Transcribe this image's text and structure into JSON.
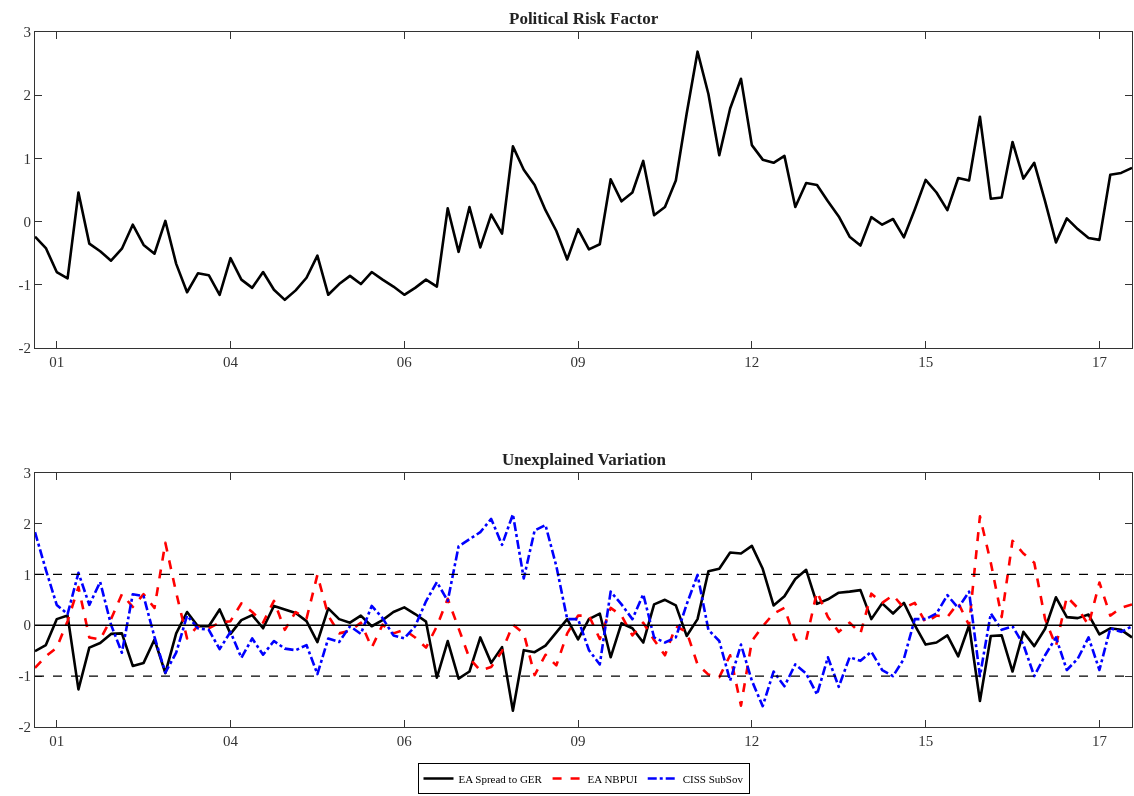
{
  "chart_data": [
    {
      "type": "line",
      "title": "Political Risk Factor",
      "ylim": [
        -2,
        3
      ],
      "yticks": [
        -2,
        -1,
        0,
        1,
        2,
        3
      ],
      "grid": false,
      "legend": false,
      "categories": [
        null,
        null,
        "01",
        null,
        null,
        null,
        null,
        null,
        null,
        null,
        null,
        null,
        null,
        null,
        null,
        null,
        null,
        null,
        "04",
        null,
        null,
        null,
        null,
        null,
        null,
        null,
        null,
        null,
        null,
        null,
        null,
        null,
        null,
        null,
        "06",
        null,
        null,
        null,
        null,
        null,
        null,
        null,
        null,
        null,
        null,
        null,
        null,
        null,
        null,
        null,
        "09",
        null,
        null,
        null,
        null,
        null,
        null,
        null,
        null,
        null,
        null,
        null,
        null,
        null,
        null,
        null,
        "12",
        null,
        null,
        null,
        null,
        null,
        null,
        null,
        null,
        null,
        null,
        null,
        null,
        null,
        null,
        null,
        "15",
        null,
        null,
        null,
        null,
        null,
        null,
        null,
        null,
        null,
        null,
        null,
        null,
        null,
        null,
        null,
        "17",
        null,
        null,
        null
      ],
      "series": [
        {
          "color": "#000000",
          "line_style": "solid",
          "values": [
            -0.24,
            -0.42,
            -0.8,
            -0.9,
            0.46,
            -0.35,
            -0.47,
            -0.62,
            -0.43,
            -0.05,
            -0.37,
            -0.51,
            0.01,
            -0.67,
            -1.12,
            -0.82,
            -0.85,
            -1.16,
            -0.58,
            -0.92,
            -1.05,
            -0.8,
            -1.08,
            -1.24,
            -1.09,
            -0.89,
            -0.54,
            -1.16,
            -0.99,
            -0.86,
            -0.99,
            -0.8,
            -0.92,
            -1.03,
            -1.16,
            -1.05,
            -0.92,
            -1.03,
            0.21,
            -0.48,
            0.23,
            -0.41,
            0.11,
            -0.19,
            1.19,
            0.82,
            0.58,
            0.18,
            -0.15,
            -0.6,
            -0.12,
            -0.44,
            -0.36,
            0.67,
            0.32,
            0.46,
            0.96,
            0.1,
            0.23,
            0.65,
            1.71,
            2.69,
            2.02,
            1.05,
            1.79,
            2.26,
            1.21,
            0.98,
            0.93,
            1.04,
            0.23,
            0.61,
            0.58,
            0.32,
            0.08,
            -0.24,
            -0.38,
            0.07,
            -0.05,
            0.04,
            -0.25,
            0.19,
            0.66,
            0.46,
            0.18,
            0.69,
            0.65,
            1.66,
            0.36,
            0.38,
            1.26,
            0.68,
            0.93,
            0.32,
            -0.33,
            0.05,
            -0.12,
            -0.26,
            -0.29,
            0.74,
            0.77,
            0.85
          ]
        }
      ]
    },
    {
      "type": "line",
      "title": "Unexplained Variation",
      "ylim": [
        -2,
        3
      ],
      "yticks": [
        -2,
        -1,
        0,
        1,
        2,
        3
      ],
      "grid": false,
      "legend": "bottom",
      "categories": [
        null,
        null,
        "01",
        null,
        null,
        null,
        null,
        null,
        null,
        null,
        null,
        null,
        null,
        null,
        null,
        null,
        null,
        null,
        "04",
        null,
        null,
        null,
        null,
        null,
        null,
        null,
        null,
        null,
        null,
        null,
        null,
        null,
        null,
        null,
        "06",
        null,
        null,
        null,
        null,
        null,
        null,
        null,
        null,
        null,
        null,
        null,
        null,
        null,
        null,
        null,
        "09",
        null,
        null,
        null,
        null,
        null,
        null,
        null,
        null,
        null,
        null,
        null,
        null,
        null,
        null,
        null,
        "12",
        null,
        null,
        null,
        null,
        null,
        null,
        null,
        null,
        null,
        null,
        null,
        null,
        null,
        null,
        null,
        "15",
        null,
        null,
        null,
        null,
        null,
        null,
        null,
        null,
        null,
        null,
        null,
        null,
        null,
        null,
        null,
        "17",
        null,
        null,
        null
      ],
      "ref_lines": [
        {
          "axis": "y",
          "value": 0,
          "color": "#000000",
          "line_style": "solid"
        },
        {
          "axis": "y",
          "value": 1,
          "color": "#000000",
          "line_style": "dashed"
        },
        {
          "axis": "y",
          "value": -1,
          "color": "#000000",
          "line_style": "dashed"
        }
      ],
      "series": [
        {
          "name": "EA Spread to GER",
          "color": "#000000",
          "line_style": "solid",
          "values": [
            -0.51,
            -0.39,
            0.12,
            0.19,
            -1.26,
            -0.44,
            -0.35,
            -0.17,
            -0.16,
            -0.8,
            -0.74,
            -0.28,
            -0.94,
            -0.16,
            0.26,
            -0.02,
            -0.02,
            0.31,
            -0.17,
            0.1,
            0.2,
            -0.06,
            0.38,
            0.31,
            0.24,
            0.08,
            -0.33,
            0.33,
            0.12,
            0.05,
            0.19,
            -0.02,
            0.1,
            0.26,
            0.35,
            0.22,
            0.07,
            -1.03,
            -0.31,
            -1.05,
            -0.91,
            -0.24,
            -0.74,
            -0.43,
            -1.68,
            -0.49,
            -0.53,
            -0.4,
            -0.14,
            0.12,
            -0.28,
            0.12,
            0.23,
            -0.63,
            0.04,
            -0.06,
            -0.34,
            0.41,
            0.5,
            0.39,
            -0.21,
            0.12,
            1.06,
            1.11,
            1.43,
            1.41,
            1.56,
            1.11,
            0.39,
            0.57,
            0.91,
            1.09,
            0.42,
            0.51,
            0.64,
            0.66,
            0.69,
            0.12,
            0.43,
            0.23,
            0.44,
            0.0,
            -0.38,
            -0.34,
            -0.2,
            -0.61,
            0.0,
            -1.49,
            -0.21,
            -0.2,
            -0.91,
            -0.13,
            -0.41,
            -0.07,
            0.55,
            0.16,
            0.14,
            0.21,
            -0.18,
            -0.06,
            -0.09,
            -0.24
          ]
        },
        {
          "name": "EA NBPUI",
          "color": "#ff0000",
          "line_style": "dashed",
          "values": [
            -0.84,
            -0.61,
            -0.44,
            0.08,
            0.75,
            -0.24,
            -0.28,
            0.12,
            0.61,
            0.36,
            0.61,
            0.34,
            1.62,
            0.64,
            -0.26,
            -0.01,
            -0.06,
            0.05,
            0.08,
            0.43,
            0.26,
            0.05,
            0.48,
            -0.09,
            0.26,
            0.13,
            0.99,
            0.19,
            -0.16,
            -0.11,
            0.05,
            -0.44,
            0.01,
            -0.16,
            -0.09,
            -0.24,
            -0.44,
            -0.02,
            0.52,
            -0.06,
            -0.65,
            -0.89,
            -0.82,
            -0.51,
            0.01,
            -0.16,
            -0.98,
            -0.58,
            -0.79,
            -0.16,
            0.19,
            0.19,
            -0.27,
            0.34,
            0.19,
            -0.2,
            0.05,
            -0.29,
            -0.59,
            -0.02,
            -0.13,
            -0.77,
            -0.97,
            -1.02,
            -0.59,
            -1.58,
            -0.31,
            -0.02,
            0.23,
            0.34,
            -0.29,
            -0.29,
            0.66,
            0.16,
            -0.13,
            0.05,
            -0.16,
            0.62,
            0.44,
            0.59,
            0.34,
            0.44,
            0.05,
            0.19,
            0.16,
            0.44,
            0.0,
            2.14,
            1.23,
            0.16,
            1.66,
            1.41,
            1.23,
            0.12,
            -0.41,
            0.56,
            0.34,
            0.0,
            0.84,
            0.19,
            0.34,
            0.41
          ]
        },
        {
          "name": "CISS SubSov",
          "color": "#0000ff",
          "line_style": "dashdot",
          "values": [
            1.83,
            1.09,
            0.4,
            0.22,
            1.03,
            0.4,
            0.85,
            0.01,
            -0.54,
            0.61,
            0.57,
            -0.23,
            -0.93,
            -0.54,
            0.19,
            -0.06,
            -0.09,
            -0.47,
            -0.13,
            -0.64,
            -0.26,
            -0.58,
            -0.31,
            -0.46,
            -0.49,
            -0.39,
            -0.96,
            -0.26,
            -0.33,
            -0.02,
            -0.17,
            0.38,
            0.14,
            -0.2,
            -0.26,
            -0.02,
            0.47,
            0.85,
            0.48,
            1.55,
            1.69,
            1.83,
            2.09,
            1.58,
            2.18,
            0.92,
            1.86,
            1.97,
            1.16,
            0.12,
            0.12,
            -0.49,
            -0.77,
            0.66,
            0.41,
            0.12,
            0.61,
            -0.24,
            -0.34,
            -0.24,
            0.41,
            0.99,
            -0.09,
            -0.31,
            -1.09,
            -0.38,
            -1.09,
            -1.59,
            -0.91,
            -1.2,
            -0.77,
            -0.95,
            -1.36,
            -0.63,
            -1.21,
            -0.63,
            -0.7,
            -0.52,
            -0.88,
            -1.0,
            -0.66,
            0.12,
            0.12,
            0.23,
            0.59,
            0.34,
            0.66,
            -1.0,
            0.23,
            -0.09,
            -0.02,
            -0.38,
            -1.0,
            -0.59,
            -0.24,
            -0.88,
            -0.66,
            -0.24,
            -0.88,
            -0.06,
            -0.13,
            -0.02
          ]
        }
      ]
    }
  ]
}
